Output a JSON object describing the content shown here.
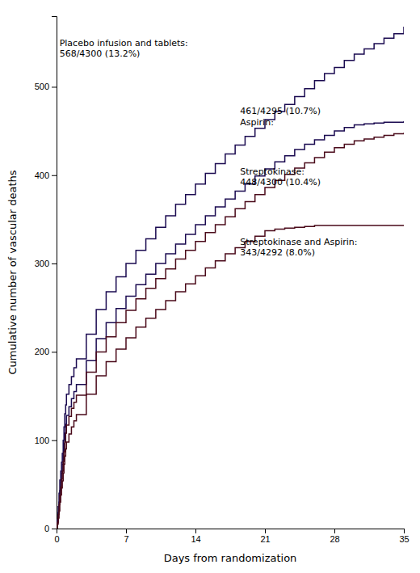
{
  "chart_data": {
    "type": "line",
    "xlabel": "Days from randomization",
    "ylabel": "Cumulative number of vascular deaths",
    "xlim": [
      0,
      35
    ],
    "ylim": [
      0,
      580
    ],
    "xticks": [
      0,
      7,
      14,
      21,
      28,
      35
    ],
    "yticks": [
      0,
      100,
      200,
      300,
      400,
      500
    ],
    "x": [
      0,
      0.08,
      0.17,
      0.25,
      0.33,
      0.42,
      0.5,
      0.58,
      0.67,
      0.75,
      0.83,
      0.92,
      1.0,
      1.25,
      1.5,
      1.75,
      2.0,
      3,
      4,
      5,
      6,
      7,
      8,
      9,
      10,
      11,
      12,
      13,
      14,
      15,
      16,
      17,
      18,
      19,
      20,
      21,
      22,
      23,
      24,
      25,
      26,
      27,
      28,
      29,
      30,
      31,
      32,
      33,
      34,
      35
    ],
    "series": [
      {
        "color": "#1a0a50",
        "line_style": "step",
        "values": [
          0,
          10,
          25,
          40,
          55,
          65,
          75,
          85,
          100,
          115,
          130,
          140,
          152,
          163,
          172,
          182,
          192,
          220,
          248,
          268,
          285,
          300,
          315,
          328,
          341,
          354,
          367,
          378,
          390,
          402,
          413,
          424,
          434,
          444,
          453,
          463,
          472,
          480,
          489,
          498,
          507,
          515,
          522,
          530,
          537,
          543,
          549,
          555,
          560,
          568
        ]
      },
      {
        "color": "#1a0a50",
        "line_style": "step",
        "values": [
          0,
          8,
          18,
          30,
          43,
          53,
          63,
          73,
          84,
          96,
          108,
          118,
          128,
          138,
          147,
          155,
          163,
          190,
          215,
          233,
          249,
          263,
          276,
          288,
          300,
          311,
          322,
          333,
          344,
          354,
          364,
          373,
          382,
          390,
          399,
          407,
          415,
          422,
          429,
          435,
          440,
          445,
          450,
          454,
          457,
          458,
          459,
          460,
          460,
          461
        ]
      },
      {
        "color": "#4a0a1a",
        "line_style": "step",
        "values": [
          0,
          7,
          16,
          27,
          38,
          47,
          56,
          65,
          76,
          87,
          98,
          108,
          117,
          127,
          136,
          143,
          151,
          177,
          200,
          217,
          233,
          247,
          260,
          272,
          283,
          294,
          305,
          315,
          325,
          335,
          344,
          353,
          362,
          370,
          378,
          386,
          394,
          401,
          408,
          414,
          420,
          426,
          431,
          435,
          439,
          441,
          443,
          445,
          447,
          448
        ]
      },
      {
        "color": "#4a0a1a",
        "line_style": "step",
        "values": [
          0,
          5,
          12,
          20,
          30,
          38,
          46,
          54,
          63,
          73,
          82,
          90,
          98,
          107,
          115,
          122,
          129,
          152,
          173,
          189,
          203,
          216,
          228,
          238,
          248,
          258,
          268,
          277,
          286,
          295,
          303,
          311,
          318,
          325,
          331,
          337,
          339,
          340,
          341,
          342,
          343,
          343,
          343,
          343,
          343,
          343,
          343,
          343,
          343,
          343
        ]
      }
    ],
    "annotations": [
      {
        "x": 0.3,
        "y": 555,
        "text": "Placebo infusion and tablets:\n568/4300 (13.2%)"
      },
      {
        "x": 18.5,
        "y": 478,
        "text": "461/4295 (10.7%)\nAspirin:"
      },
      {
        "x": 18.5,
        "y": 410,
        "text": "Streptokinase:\n448/4300 (10.4%)"
      },
      {
        "x": 18.5,
        "y": 330,
        "text": "Streptokinase and Aspirin:\n343/4292 (8.0%)"
      }
    ]
  }
}
